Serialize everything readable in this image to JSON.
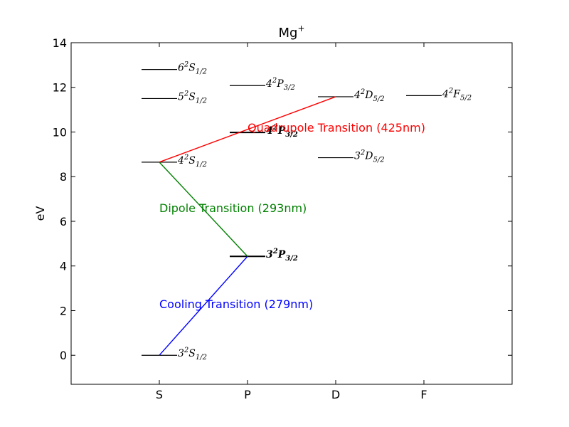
{
  "chart_data": {
    "type": "line",
    "title": "Mg",
    "title_superscript": "+",
    "ylabel": "eV",
    "xlabel": "",
    "categories": [
      "S",
      "P",
      "D",
      "F"
    ],
    "ylim": [
      -1.3,
      14.0
    ],
    "yticks": [
      0,
      2,
      4,
      6,
      8,
      10,
      12,
      14
    ],
    "ytick_labels": [
      "0",
      "2",
      "4",
      "6",
      "8",
      "10",
      "12",
      "14"
    ],
    "grid": false,
    "levels": [
      {
        "col": 0,
        "energy": 0.0,
        "n": "3",
        "mult": "2",
        "L": "S",
        "J": "1/2",
        "bold": false
      },
      {
        "col": 0,
        "energy": 8.65,
        "n": "4",
        "mult": "2",
        "L": "S",
        "J": "1/2",
        "bold": false
      },
      {
        "col": 0,
        "energy": 11.5,
        "n": "5",
        "mult": "2",
        "L": "S",
        "J": "1/2",
        "bold": false
      },
      {
        "col": 0,
        "energy": 12.8,
        "n": "6",
        "mult": "2",
        "L": "S",
        "J": "1/2",
        "bold": false
      },
      {
        "col": 1,
        "energy": 4.43,
        "n": "3",
        "mult": "2",
        "L": "P",
        "J": "3/2",
        "bold": true
      },
      {
        "col": 1,
        "energy": 9.98,
        "n": "4",
        "mult": "2",
        "L": "P",
        "J": "3/2",
        "bold": true
      },
      {
        "col": 1,
        "energy": 12.08,
        "n": "4",
        "mult": "2",
        "L": "P",
        "J": "3/2",
        "bold": false
      },
      {
        "col": 2,
        "energy": 8.85,
        "n": "3",
        "mult": "2",
        "L": "D",
        "J": "5/2",
        "bold": false
      },
      {
        "col": 2,
        "energy": 11.58,
        "n": "4",
        "mult": "2",
        "L": "D",
        "J": "5/2",
        "bold": false
      },
      {
        "col": 3,
        "energy": 11.63,
        "n": "4",
        "mult": "2",
        "L": "F",
        "J": "5/2",
        "bold": false
      }
    ],
    "transitions": [
      {
        "name": "Cooling Transition (279nm)",
        "color": "#0000ff",
        "from": {
          "col": 0,
          "energy": 0.0
        },
        "to": {
          "col": 1,
          "energy": 4.43
        }
      },
      {
        "name": "Dipole Transition (293nm)",
        "color": "#008000",
        "from": {
          "col": 0,
          "energy": 8.65
        },
        "to": {
          "col": 1,
          "energy": 4.43
        }
      },
      {
        "name": "Quadrupole Transition (425nm)",
        "color": "#ff0000",
        "from": {
          "col": 0,
          "energy": 8.65
        },
        "to": {
          "col": 2,
          "energy": 11.58
        }
      }
    ],
    "transition_labels": [
      {
        "text": "Cooling Transition (279nm)",
        "color": "#0000ff",
        "col": 0,
        "energy": 2.3
      },
      {
        "text": "Dipole Transition (293nm)",
        "color": "#008000",
        "col": 0,
        "energy": 6.6
      },
      {
        "text": "Quadrupole Transition (425nm)",
        "color": "#ff0000",
        "col": 1,
        "energy": 10.2
      }
    ]
  }
}
